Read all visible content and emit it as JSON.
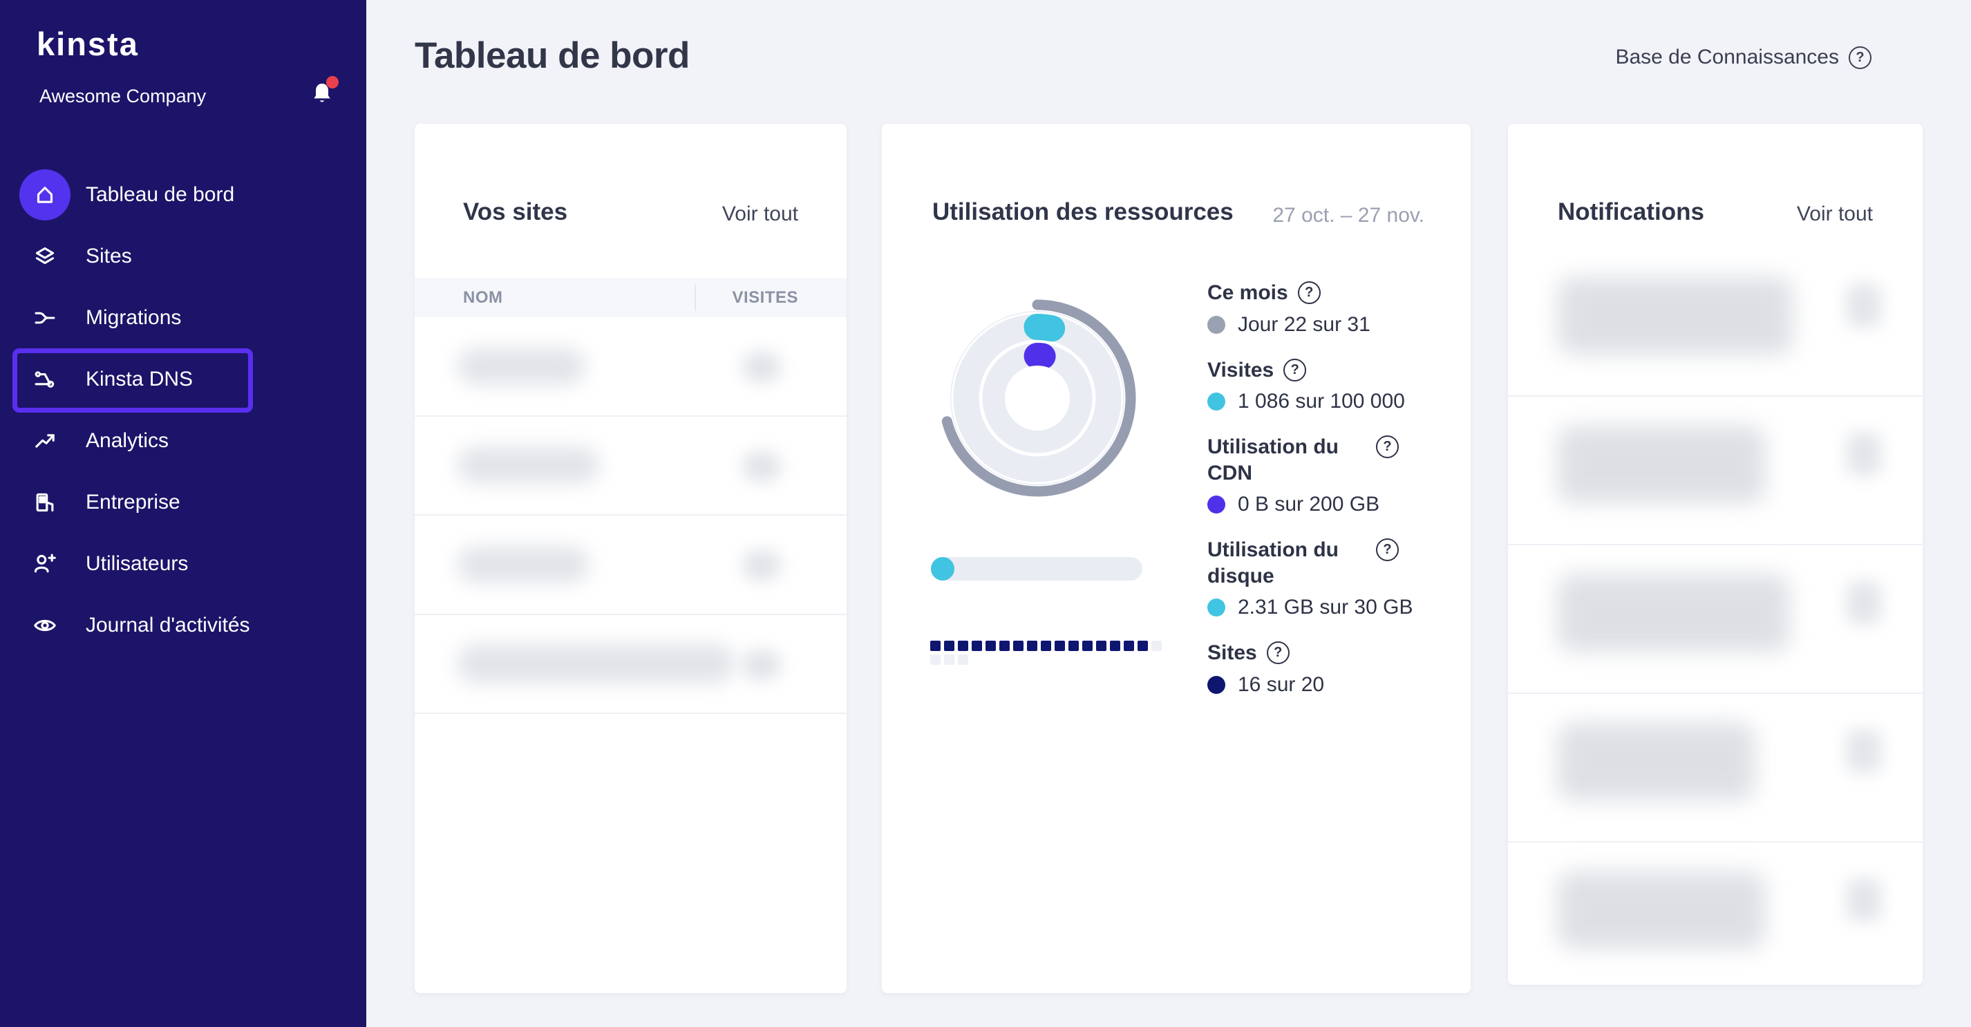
{
  "sidebar": {
    "logo": "kinsta",
    "company": "Awesome Company",
    "items": [
      {
        "label": "Tableau de bord",
        "icon": "home-icon",
        "active": true
      },
      {
        "label": "Sites",
        "icon": "sites-icon"
      },
      {
        "label": "Migrations",
        "icon": "migrations-icon"
      },
      {
        "label": "Kinsta DNS",
        "icon": "dns-icon",
        "highlighted": true
      },
      {
        "label": "Analytics",
        "icon": "analytics-icon"
      },
      {
        "label": "Entreprise",
        "icon": "company-icon"
      },
      {
        "label": "Utilisateurs",
        "icon": "users-icon"
      },
      {
        "label": "Journal d'activités",
        "icon": "activity-log-icon"
      }
    ]
  },
  "header": {
    "title": "Tableau de bord",
    "kb_label": "Base de Connaissances"
  },
  "sites_card": {
    "title": "Vos sites",
    "view_all": "Voir tout",
    "col_name": "NOM",
    "col_visits": "VISITES",
    "rows_redacted": 4
  },
  "resources_card": {
    "title": "Utilisation des ressources",
    "date_range": "27 oct. – 27 nov.",
    "stats": [
      {
        "label": "Ce mois",
        "value": "Jour 22 sur 31",
        "dot_color": "#9aa1b2"
      },
      {
        "label": "Visites",
        "value": "1 086 sur 100 000",
        "dot_color": "#40c4e1"
      },
      {
        "label": "Utilisation du CDN",
        "value": "0 B sur 200 GB",
        "dot_color": "#5130e9"
      },
      {
        "label": "Utilisation du disque",
        "value": "2.31 GB sur 30 GB",
        "dot_color": "#40c4e1"
      },
      {
        "label": "Sites",
        "value": "16 sur 20",
        "dot_color": "#0e1670"
      }
    ],
    "usage": {
      "month_day": 22,
      "month_days": 31,
      "visits": 1086,
      "visits_limit": 100000,
      "cdn_used_b": 0,
      "cdn_limit_gb": 200,
      "disk_used_gb": 2.31,
      "disk_limit_gb": 30,
      "sites_used": 16,
      "sites_limit": 20
    }
  },
  "notifications_card": {
    "title": "Notifications",
    "view_all": "Voir tout",
    "items_redacted": 5
  },
  "colors": {
    "sidebar_bg": "#1c1468",
    "accent_purple": "#5333ed",
    "highlight_border": "#5a2ff0",
    "cyan": "#40c4e1",
    "indigo": "#5130e9",
    "navy": "#0e1670",
    "gray_arc": "#969db0",
    "notification_dot": "#e8414d"
  }
}
